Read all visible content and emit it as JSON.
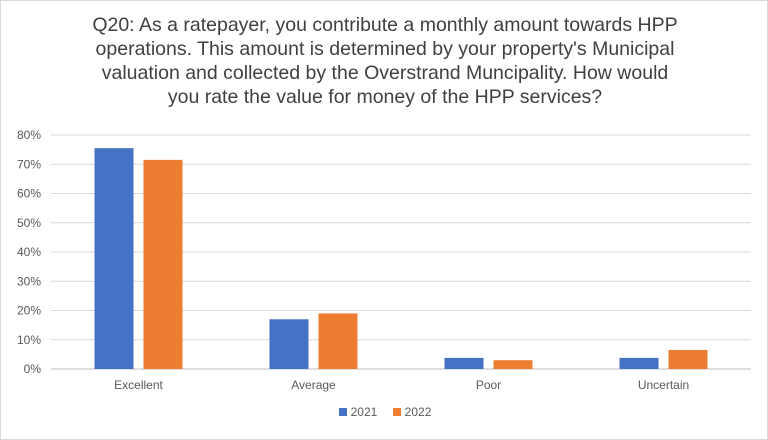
{
  "chart_data": {
    "type": "bar",
    "title_lines": [
      "Q20: As a ratepayer, you contribute a monthly amount towards HPP",
      "operations. This amount is determined by your property's Municipal",
      "valuation and collected by the Overstrand Muncipality. How would",
      "you rate the value for money of the HPP services?"
    ],
    "categories": [
      "Excellent",
      "Average",
      "Poor",
      "Uncertain"
    ],
    "series": [
      {
        "name": "2021",
        "color": "#4472C4",
        "values": [
          75.5,
          17,
          3.8,
          3.8
        ]
      },
      {
        "name": "2022",
        "color": "#ED7D31",
        "values": [
          71.5,
          19,
          3,
          6.5
        ]
      }
    ],
    "ylim": [
      0,
      80
    ],
    "yticks": [
      "0%",
      "10%",
      "20%",
      "30%",
      "40%",
      "50%",
      "60%",
      "70%",
      "80%"
    ],
    "grid": true,
    "legend_position": "bottom"
  }
}
